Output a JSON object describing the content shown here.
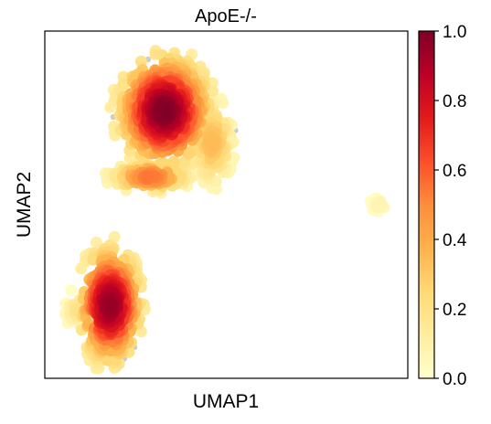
{
  "chart_data": {
    "type": "scatter",
    "title": "ApoE-/-",
    "xlabel": "UMAP1",
    "ylabel": "UMAP2",
    "axis_ticks_shown": false,
    "grid": false,
    "colorbar": {
      "placement": "right",
      "range": [
        0.0,
        1.0
      ],
      "ticks": [
        "0.0",
        "0.2",
        "0.4",
        "0.6",
        "0.8",
        "1.0"
      ],
      "colormap": [
        "#ffffcc",
        "#ffeda0",
        "#fed976",
        "#feb24c",
        "#fd8d3c",
        "#fc4e2a",
        "#e31a1c",
        "#bd0026",
        "#800026"
      ]
    },
    "xlim": [
      0,
      10
    ],
    "ylim": [
      0,
      10
    ],
    "missing_color": "#cccccc",
    "clusters": [
      {
        "center": [
          3.3,
          7.7
        ],
        "radius": [
          1.5,
          1.9
        ],
        "peak_density": 1.0,
        "points": 520,
        "grey_fraction": 0.02
      },
      {
        "center": [
          4.6,
          6.8
        ],
        "radius": [
          0.7,
          1.5
        ],
        "peak_density": 0.35,
        "points": 170,
        "grey_fraction": 0.1
      },
      {
        "center": [
          2.9,
          5.8
        ],
        "radius": [
          1.3,
          0.5
        ],
        "peak_density": 0.55,
        "points": 120,
        "grey_fraction": 0.0
      },
      {
        "center": [
          1.8,
          2.1
        ],
        "radius": [
          1.0,
          2.0
        ],
        "peak_density": 0.95,
        "points": 420,
        "grey_fraction": 0.02
      },
      {
        "center": [
          0.9,
          2.0
        ],
        "radius": [
          0.4,
          0.6
        ],
        "peak_density": 0.2,
        "points": 40,
        "grey_fraction": 0.0
      },
      {
        "center": [
          9.2,
          5.0
        ],
        "radius": [
          0.3,
          0.25
        ],
        "peak_density": 0.08,
        "points": 22,
        "grey_fraction": 0.3
      }
    ]
  }
}
